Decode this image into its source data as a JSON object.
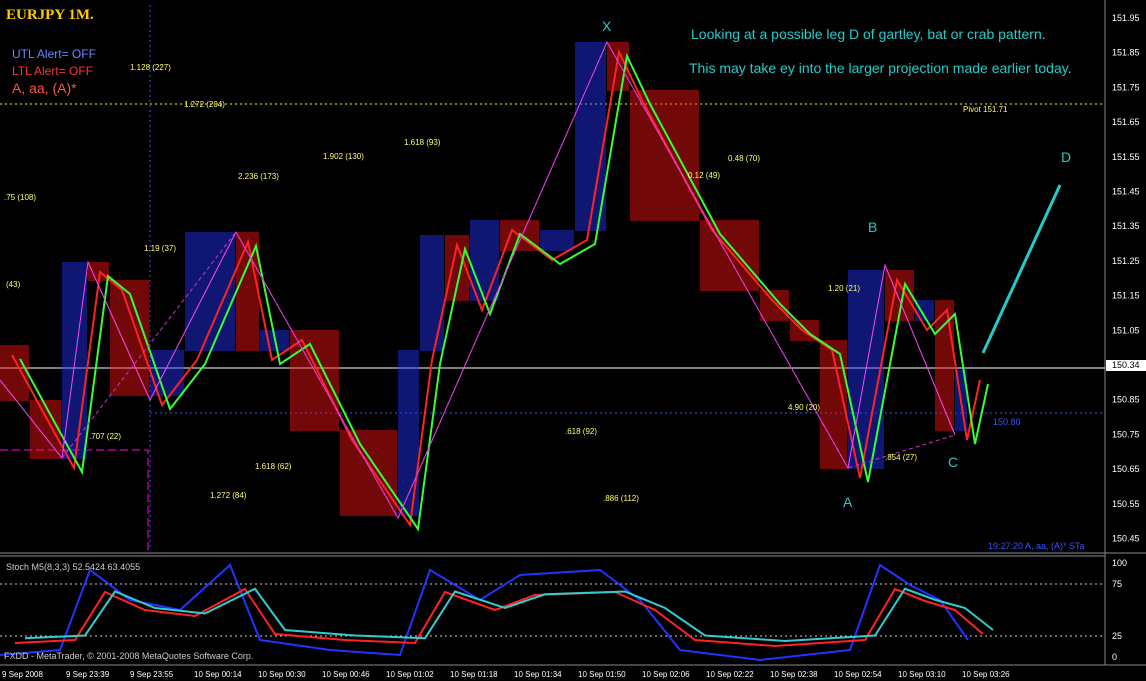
{
  "window": {
    "title": "EURJPY 1M.",
    "utl_alert": "UTL Alert= OFF",
    "ltl_alert": "LTL Alert= OFF",
    "indicator_tag": "A, aa, (A)*"
  },
  "annotation": {
    "line1": "Looking at a possible leg D of gartley, bat or crab pattern.",
    "line2": "This may take ey into the larger projection made earlier today."
  },
  "pattern_points": {
    "x": "X",
    "a": "A",
    "b": "B",
    "c": "C",
    "d": "D"
  },
  "pivot": "Pivot  151.71",
  "level_label": "150.80",
  "fib_labels": [
    "1.128 (227)",
    "1.272 (204)",
    "1.902 (130)",
    "1.618 (93)",
    "2.236 (173)",
    ".75 (108)",
    "1.19 (37)",
    "(43)",
    ".707 (22)",
    "1.618 (62)",
    "1.272 (84)",
    ".618 (92)",
    ".886 (112)",
    "0.48 (70)",
    "0.12 (49)",
    "1.20 (21)",
    "4.90 (20)",
    ".854 (27)"
  ],
  "price_axis": [
    "151.95",
    "151.85",
    "151.75",
    "151.65",
    "151.55",
    "151.45",
    "151.35",
    "151.25",
    "151.15",
    "151.05",
    "150.34",
    "150.85",
    "150.75",
    "150.65",
    "150.55",
    "150.45"
  ],
  "stoch": {
    "label": "Stoch M5(8,3,3) 52.5424 63.4055",
    "axis": [
      "100",
      "75",
      "25",
      "0"
    ]
  },
  "time_axis": [
    "9 Sep 2008",
    "9 Sep 23:39",
    "9 Sep 23:55",
    "10 Sep 00:14",
    "10 Sep 00:30",
    "10 Sep 00:46",
    "10 Sep 01:02",
    "10 Sep 01:18",
    "10 Sep 01:34",
    "10 Sep 01:50",
    "10 Sep 02:06",
    "10 Sep 02:22",
    "10 Sep 02:38",
    "10 Sep 02:54",
    "10 Sep 03:10",
    "10 Sep 03:26"
  ],
  "footer": "FXDD - MetaTrader, © 2001-2008 MetaQuotes Software Corp.",
  "clock": "19:27:20   A, aa, (A)* STa"
}
